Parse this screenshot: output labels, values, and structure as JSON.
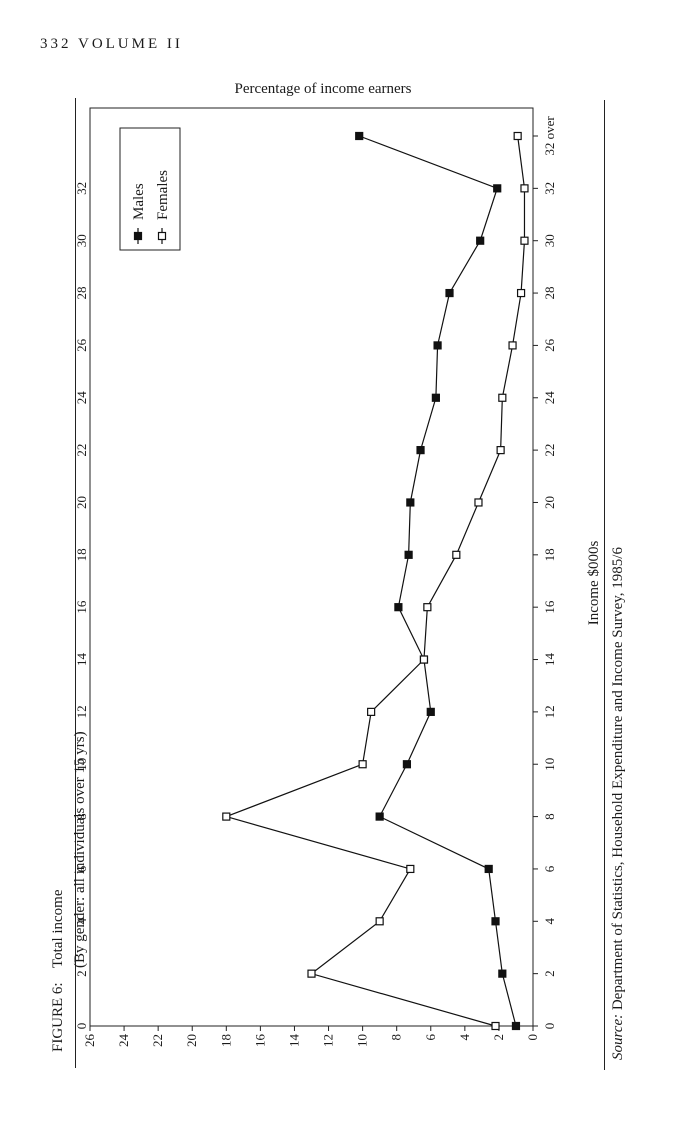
{
  "page_header": {
    "number": "332",
    "title": "VOLUME II"
  },
  "figure": {
    "label": "FIGURE 6:",
    "title": "Total income",
    "subtitle": "(By gender: all individuals over 15 yrs)",
    "source_prefix": "Source:",
    "source_text": " Department of Statistics, Household Expenditure and Income Survey, 1985/6"
  },
  "chart_data": {
    "type": "line",
    "orientation": "rotated-90-ccw",
    "title": "",
    "xlabel": "Income $000s",
    "ylabel": "Percentage of income earners",
    "x_tick_labels": [
      "0",
      "2",
      "4",
      "6",
      "8",
      "10",
      "12",
      "14",
      "16",
      "18",
      "20",
      "22",
      "24",
      "26",
      "28",
      "30",
      "32",
      "32 over"
    ],
    "x_positions": [
      0,
      2,
      4,
      6,
      8,
      10,
      12,
      14,
      16,
      18,
      20,
      22,
      24,
      26,
      28,
      30,
      32,
      34
    ],
    "y_ticks": [
      0,
      2,
      4,
      6,
      8,
      10,
      12,
      14,
      16,
      18,
      20,
      22,
      24,
      26
    ],
    "top_axis_ticks": [
      "0",
      "2",
      "4",
      "6",
      "8",
      "10",
      "12",
      "14",
      "16",
      "18",
      "20",
      "22",
      "24",
      "26",
      "28",
      "30",
      "32"
    ],
    "ylim": [
      0,
      26
    ],
    "xlim": [
      0,
      34
    ],
    "legend_position": "upper-right",
    "series": [
      {
        "name": "Males",
        "marker": "filled-square",
        "values": [
          1.0,
          1.8,
          2.2,
          2.6,
          9.0,
          7.4,
          6.0,
          6.4,
          7.9,
          7.3,
          7.2,
          6.6,
          5.7,
          5.6,
          4.9,
          3.1,
          2.1,
          10.2
        ]
      },
      {
        "name": "Females",
        "marker": "open-square",
        "values": [
          2.2,
          13.0,
          9.0,
          7.2,
          18.0,
          10.0,
          9.5,
          6.4,
          6.2,
          4.5,
          3.2,
          1.9,
          1.8,
          1.2,
          0.7,
          0.5,
          0.5,
          0.9
        ]
      }
    ]
  }
}
